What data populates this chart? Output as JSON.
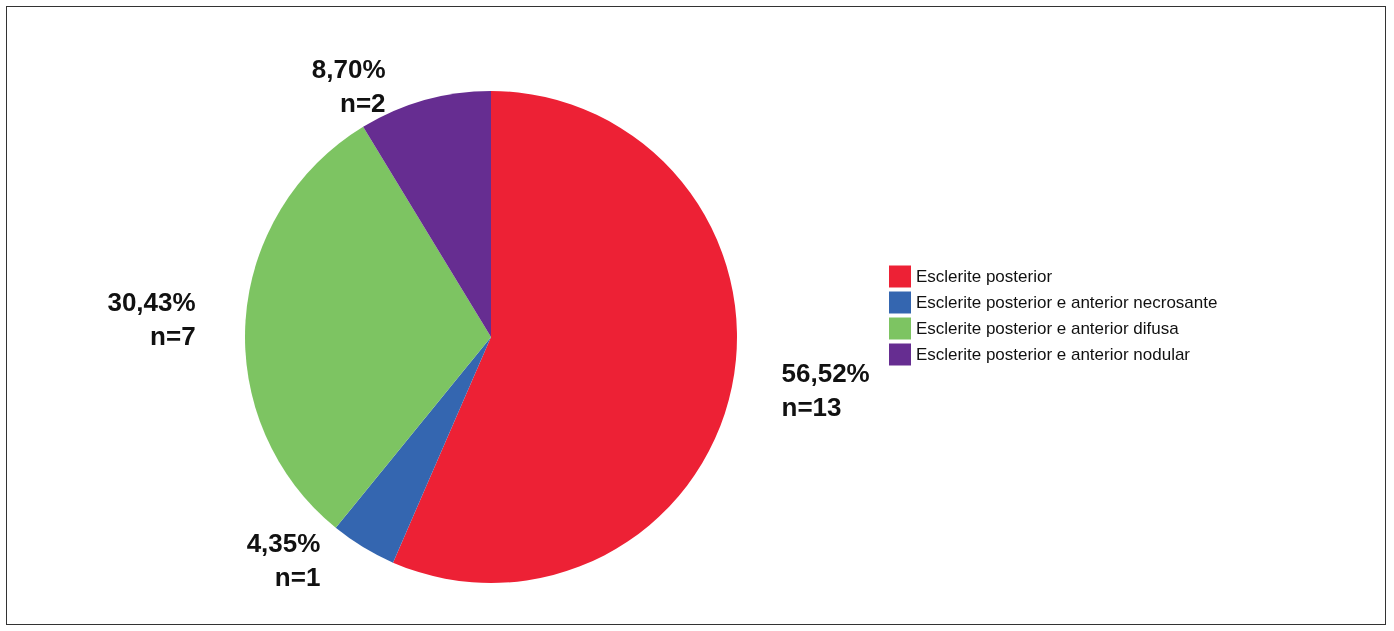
{
  "chart_data": {
    "type": "pie",
    "categories": [
      "Esclerite posterior",
      "Esclerite posterior e anterior necrosante",
      "Esclerite posterior e anterior difusa",
      "Esclerite posterior e anterior nodular"
    ],
    "values": [
      56.52,
      4.35,
      30.43,
      8.7
    ],
    "colors": [
      "#ed2135",
      "#3466b0",
      "#7dc462",
      "#662d91"
    ],
    "value_labels": [
      "56,52%\nn=13",
      "4,35%\nn=1",
      "30,43%\nn=7",
      "8,70%\nn=2"
    ],
    "legend": "right"
  }
}
